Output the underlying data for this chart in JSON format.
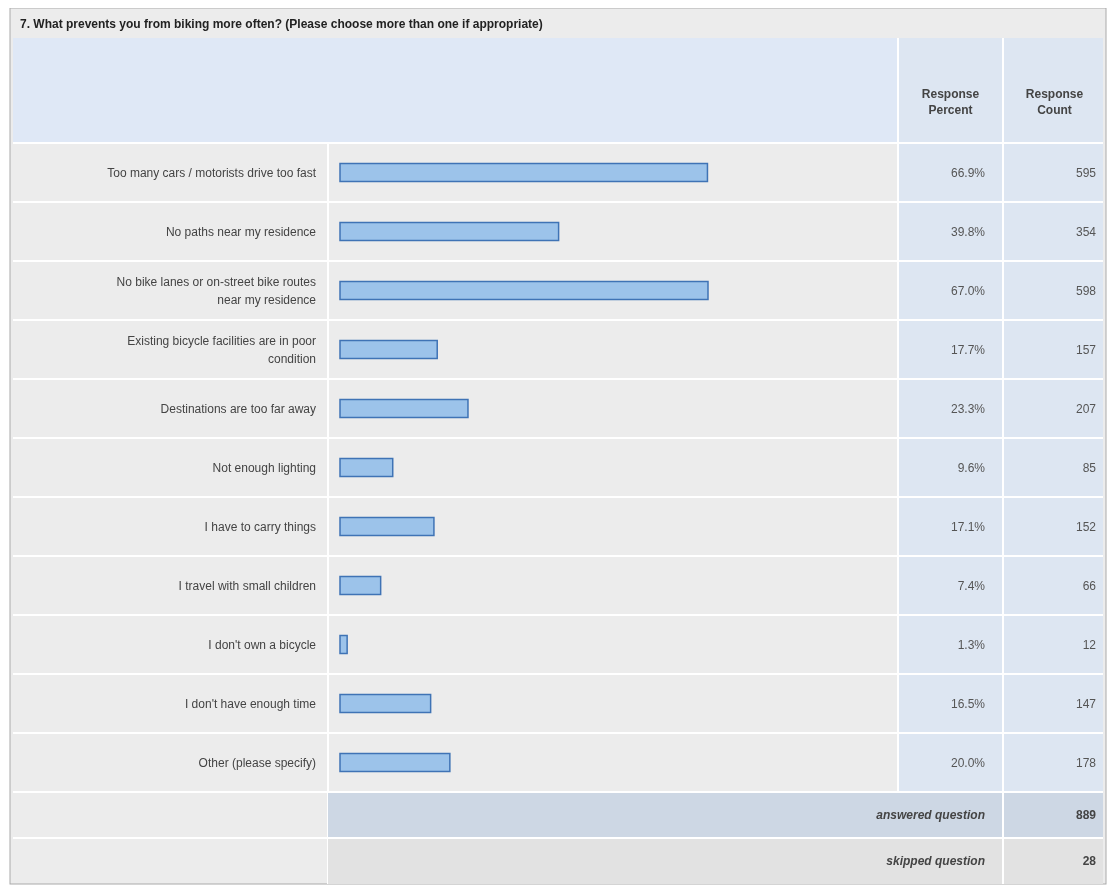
{
  "chart_data": {
    "type": "bar",
    "orientation": "horizontal",
    "title": "7. What prevents you from biking more often? (Please choose more than one if appropriate)",
    "categories": [
      "Too many cars / motorists drive too fast",
      "No paths near my residence",
      "No bike lanes or on-street bike routes near my residence",
      "Existing bicycle facilities are in poor condition",
      "Destinations are too far away",
      "Not enough lighting",
      "I have to carry things",
      "I travel with small children",
      "I don't own a bicycle",
      "I don't have enough time",
      "Other (please specify)"
    ],
    "values": [
      66.9,
      39.8,
      67.0,
      17.7,
      23.3,
      9.6,
      17.1,
      7.4,
      1.3,
      16.5,
      20.0
    ],
    "value_labels": [
      "66.9%",
      "39.8%",
      "67.0%",
      "17.7%",
      "23.3%",
      "9.6%",
      "17.1%",
      "7.4%",
      "1.3%",
      "16.5%",
      "20.0%"
    ],
    "color": "#9cc3ea",
    "tick_labels": "y",
    "annotations": [
      "Response Percent",
      "Response Count",
      "answered question",
      "889",
      "skipped question",
      "28",
      "595",
      "354",
      "598",
      "157",
      "207",
      "85",
      "152",
      "66",
      "12",
      "147",
      "178"
    ]
  }
}
